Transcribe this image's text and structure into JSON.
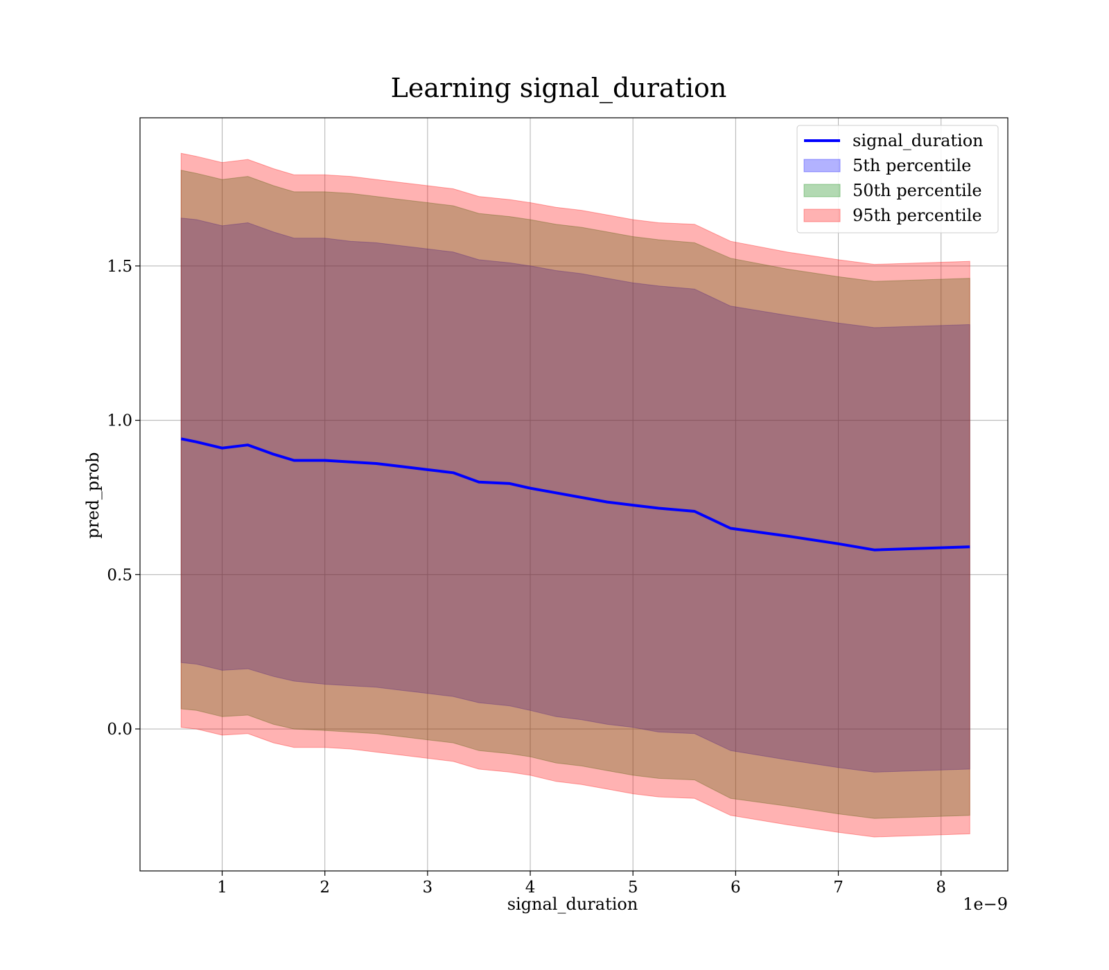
{
  "chart_data": {
    "type": "area",
    "title": "Learning signal_duration",
    "xlabel": "signal_duration",
    "ylabel": "pred_prob",
    "x_offset_label": "1e−9",
    "xlim": [
      0.2,
      8.65
    ],
    "ylim": [
      -0.46,
      1.98
    ],
    "x_ticks": [
      1,
      2,
      3,
      4,
      5,
      6,
      7,
      8
    ],
    "x_tick_labels": [
      "1",
      "2",
      "3",
      "4",
      "5",
      "6",
      "7",
      "8"
    ],
    "y_ticks": [
      0.0,
      0.5,
      1.0,
      1.5
    ],
    "y_tick_labels": [
      "0.0",
      "0.5",
      "1.0",
      "1.5"
    ],
    "grid": true,
    "legend_position": "top-right",
    "x": [
      0.6,
      0.75,
      1.0,
      1.25,
      1.5,
      1.7,
      2.0,
      2.25,
      2.5,
      2.75,
      3.0,
      3.25,
      3.5,
      3.8,
      4.0,
      4.25,
      4.5,
      4.75,
      5.0,
      5.25,
      5.6,
      5.95,
      6.5,
      7.0,
      7.35,
      8.28
    ],
    "series": [
      {
        "name": "signal_duration",
        "kind": "line",
        "color": "#0000ff",
        "values": [
          0.94,
          0.93,
          0.91,
          0.92,
          0.89,
          0.87,
          0.87,
          0.865,
          0.86,
          0.85,
          0.84,
          0.83,
          0.8,
          0.795,
          0.78,
          0.765,
          0.75,
          0.735,
          0.725,
          0.715,
          0.705,
          0.65,
          0.625,
          0.6,
          0.58,
          0.59
        ]
      },
      {
        "name": "5th percentile",
        "kind": "band",
        "color": "#0000ff",
        "lower": [
          0.215,
          0.21,
          0.19,
          0.195,
          0.17,
          0.155,
          0.145,
          0.14,
          0.135,
          0.125,
          0.115,
          0.105,
          0.085,
          0.075,
          0.06,
          0.04,
          0.03,
          0.015,
          0.005,
          -0.01,
          -0.015,
          -0.07,
          -0.1,
          -0.125,
          -0.14,
          -0.13
        ],
        "upper": [
          1.655,
          1.65,
          1.63,
          1.64,
          1.61,
          1.59,
          1.59,
          1.58,
          1.575,
          1.565,
          1.555,
          1.545,
          1.52,
          1.51,
          1.5,
          1.485,
          1.475,
          1.46,
          1.445,
          1.435,
          1.425,
          1.37,
          1.34,
          1.315,
          1.3,
          1.31
        ]
      },
      {
        "name": "50th percentile",
        "kind": "band",
        "color": "#008000",
        "lower": [
          0.065,
          0.06,
          0.04,
          0.045,
          0.015,
          0.0,
          -0.005,
          -0.01,
          -0.015,
          -0.025,
          -0.035,
          -0.045,
          -0.07,
          -0.08,
          -0.09,
          -0.11,
          -0.12,
          -0.135,
          -0.15,
          -0.16,
          -0.165,
          -0.225,
          -0.25,
          -0.275,
          -0.29,
          -0.28
        ],
        "upper": [
          1.81,
          1.8,
          1.78,
          1.79,
          1.76,
          1.74,
          1.74,
          1.735,
          1.725,
          1.715,
          1.705,
          1.695,
          1.67,
          1.66,
          1.65,
          1.635,
          1.625,
          1.61,
          1.595,
          1.585,
          1.575,
          1.525,
          1.49,
          1.465,
          1.45,
          1.46
        ]
      },
      {
        "name": "95th percentile",
        "kind": "band",
        "color": "#ff0000",
        "lower": [
          0.005,
          0.0,
          -0.02,
          -0.015,
          -0.045,
          -0.06,
          -0.06,
          -0.065,
          -0.075,
          -0.085,
          -0.095,
          -0.105,
          -0.13,
          -0.14,
          -0.15,
          -0.17,
          -0.18,
          -0.195,
          -0.21,
          -0.22,
          -0.225,
          -0.28,
          -0.31,
          -0.335,
          -0.35,
          -0.34
        ],
        "upper": [
          1.865,
          1.855,
          1.835,
          1.845,
          1.815,
          1.795,
          1.795,
          1.79,
          1.78,
          1.77,
          1.76,
          1.75,
          1.725,
          1.715,
          1.705,
          1.69,
          1.68,
          1.665,
          1.65,
          1.64,
          1.635,
          1.58,
          1.545,
          1.52,
          1.505,
          1.515
        ]
      }
    ],
    "colors": {
      "line": "#0000ff",
      "band_5th": "#0000ff",
      "band_50th": "#008000",
      "band_95th": "#ff0000",
      "grid": "#b0b0b0",
      "axis": "#000000"
    }
  }
}
